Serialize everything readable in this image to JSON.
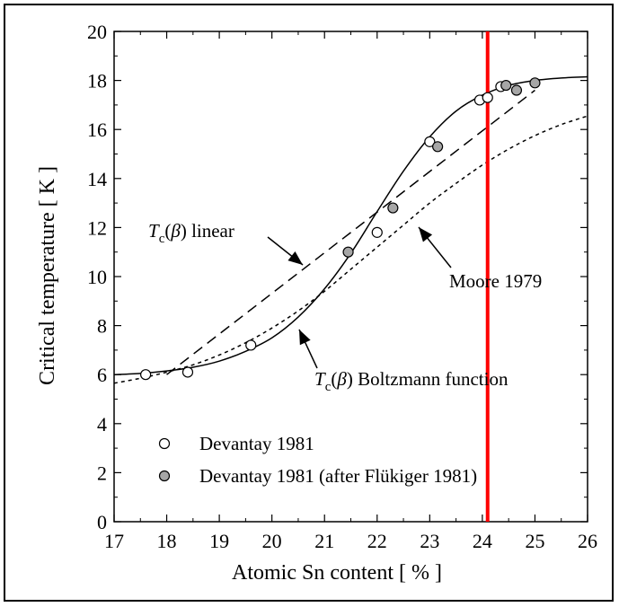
{
  "chart_data": {
    "type": "scatter",
    "xlabel": "Atomic Sn content [ % ]",
    "ylabel": "Critical temperature [ K ]",
    "xlim": [
      17,
      26
    ],
    "ylim": [
      0,
      20
    ],
    "xticks": [
      17,
      18,
      19,
      20,
      21,
      22,
      23,
      24,
      25,
      26
    ],
    "yticks": [
      0,
      2,
      4,
      6,
      8,
      10,
      12,
      14,
      16,
      18,
      20
    ],
    "grid": false,
    "legend_position": "bottom-left",
    "series": [
      {
        "name": "Devantay 1981",
        "marker": "open-circle",
        "points": [
          [
            17.6,
            6.0
          ],
          [
            18.4,
            6.1
          ],
          [
            19.6,
            7.2
          ],
          [
            22.0,
            11.8
          ],
          [
            23.0,
            15.5
          ],
          [
            23.95,
            17.2
          ],
          [
            24.1,
            17.3
          ],
          [
            24.35,
            17.75
          ]
        ]
      },
      {
        "name": "Devantay 1981 (after Flükiger 1981)",
        "marker": "filled-circle",
        "points": [
          [
            21.45,
            11.0
          ],
          [
            22.3,
            12.8
          ],
          [
            23.15,
            15.3
          ],
          [
            24.45,
            17.8
          ],
          [
            24.65,
            17.6
          ],
          [
            25.0,
            17.9
          ]
        ]
      },
      {
        "curve": "Boltzmann",
        "line": "solid",
        "x": [
          17.0,
          17.5,
          18.0,
          18.5,
          19.0,
          19.5,
          20.0,
          20.5,
          21.0,
          21.5,
          22.0,
          22.5,
          23.0,
          23.5,
          24.0,
          24.5,
          25.0,
          25.5,
          26.0
        ],
        "y": [
          6.0,
          6.05,
          6.15,
          6.3,
          6.55,
          6.95,
          7.5,
          8.35,
          9.5,
          10.95,
          12.65,
          14.3,
          15.7,
          16.75,
          17.4,
          17.8,
          18.0,
          18.1,
          18.15
        ]
      },
      {
        "curve": "linear",
        "line": "dashed",
        "x": [
          18.0,
          25.0
        ],
        "y": [
          6.0,
          17.6
        ]
      },
      {
        "curve": "Moore",
        "line": "dotted",
        "x": [
          17.0,
          17.5,
          18.0,
          18.5,
          19.0,
          19.5,
          20.0,
          20.5,
          21.0,
          21.5,
          22.0,
          22.5,
          23.0,
          23.5,
          24.0,
          24.5,
          25.0,
          25.5,
          26.0
        ],
        "y": [
          5.65,
          5.85,
          6.1,
          6.4,
          6.8,
          7.3,
          7.9,
          8.6,
          9.4,
          10.3,
          11.2,
          12.1,
          13.0,
          13.8,
          14.55,
          15.2,
          15.75,
          16.2,
          16.55
        ]
      }
    ],
    "reference_line": {
      "x": 24.1,
      "color": "#ff0000"
    },
    "legend": [
      {
        "label": "Devantay 1981",
        "marker": "open-circle"
      },
      {
        "label": "Devantay 1981 (after Flükiger 1981)",
        "marker": "filled-circle"
      }
    ],
    "annotations": {
      "linear": {
        "sub": "c",
        "suffix": ") linear"
      },
      "boltzmann": {
        "sub": "c",
        "suffix": ") Boltzmann function"
      },
      "moore": "Moore 1979",
      "t_symbol": "T",
      "beta_open": "(",
      "beta_symbol": "β"
    },
    "colors": {
      "axis": "#000000",
      "open_marker_fill": "#ffffff",
      "filled_marker_fill": "#a6a6a6",
      "reference_line": "#ff0000"
    }
  }
}
